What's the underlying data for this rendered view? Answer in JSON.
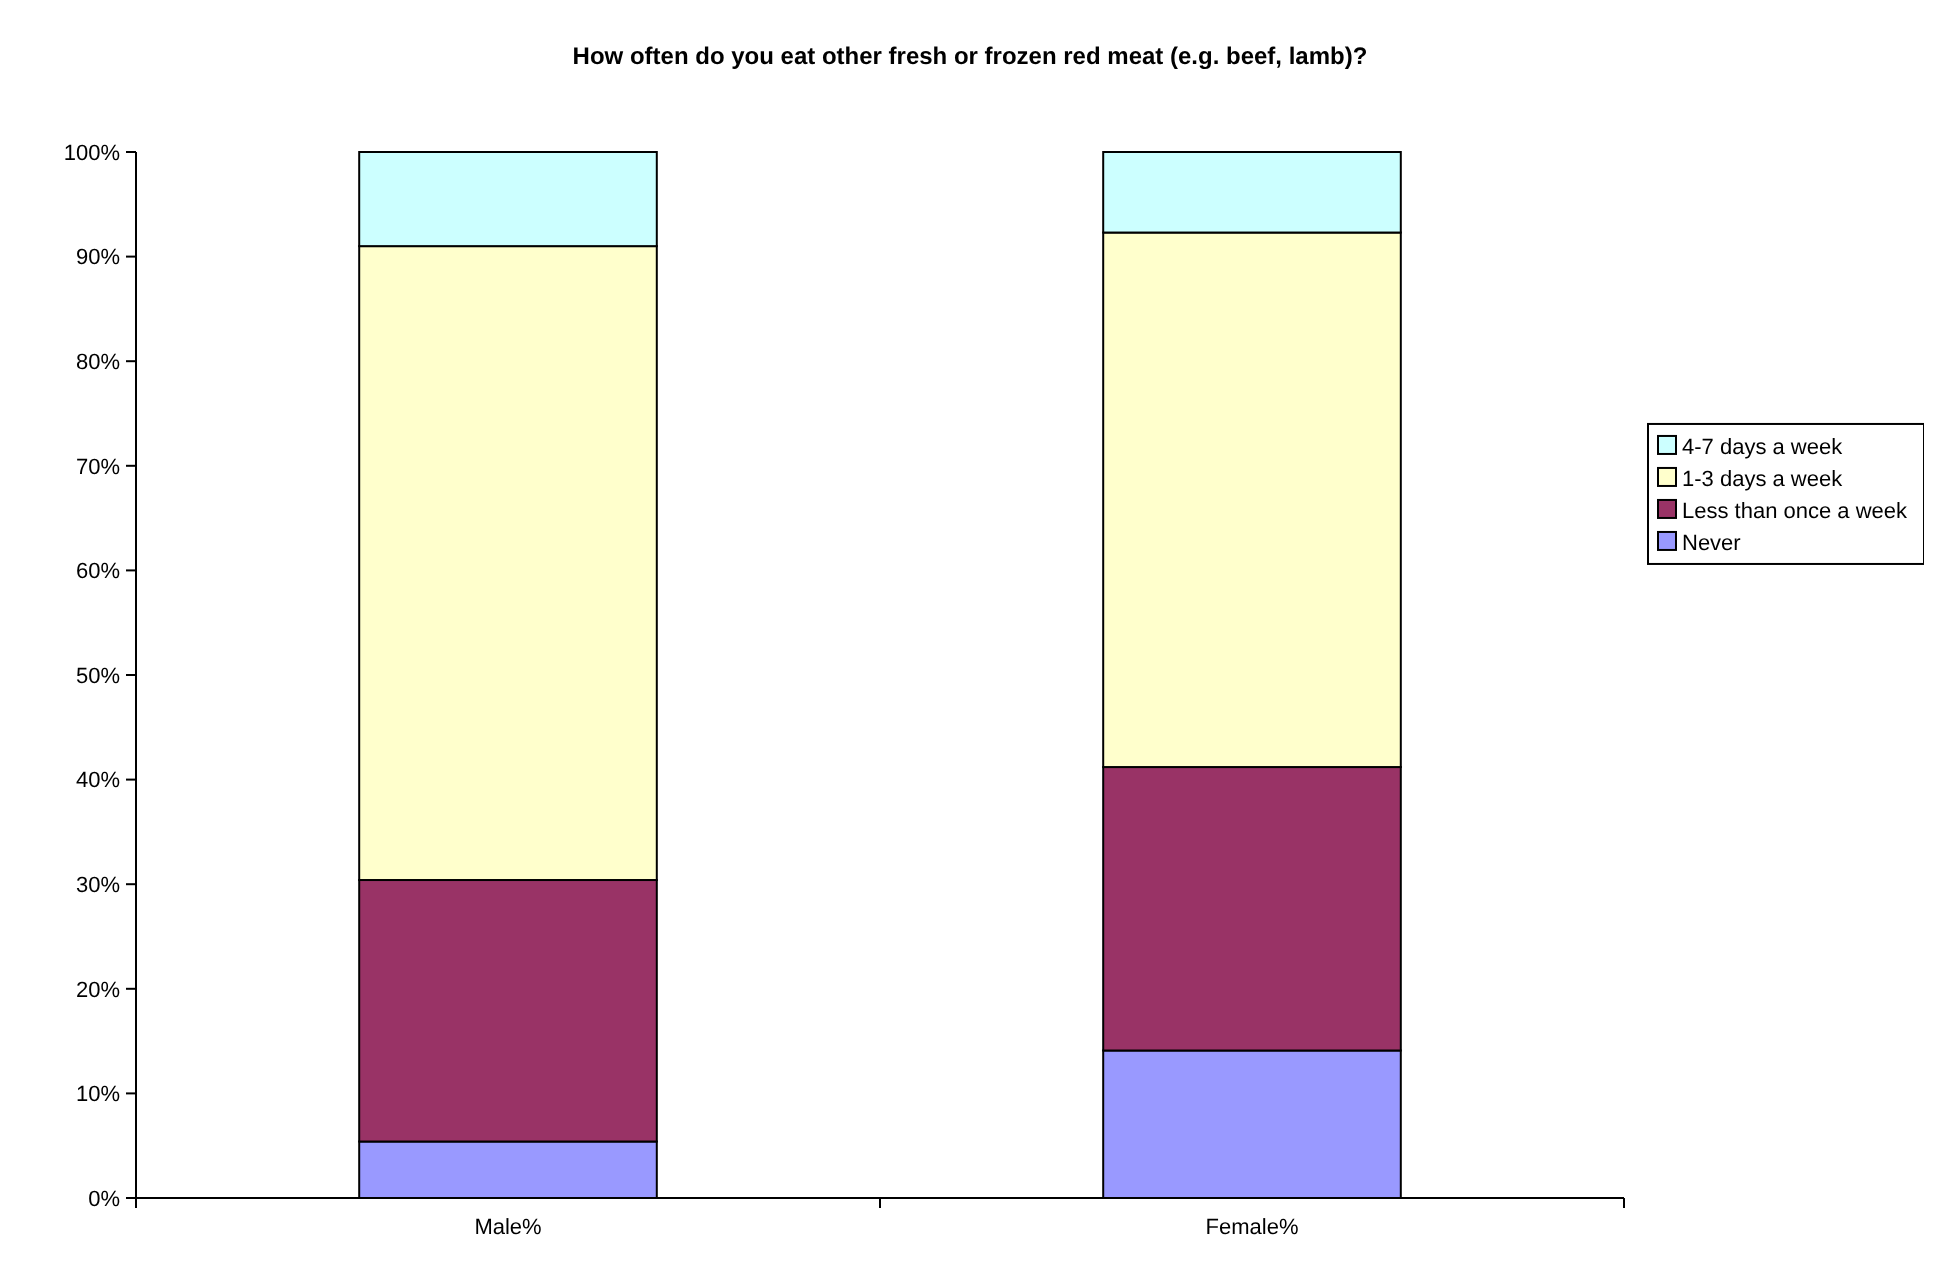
{
  "chart_data": {
    "type": "bar",
    "stacked": true,
    "title": "How often do you eat other fresh or frozen red meat (e.g. beef, lamb)?",
    "categories": [
      "Male%",
      "Female%"
    ],
    "series": [
      {
        "name": "Never",
        "color": "#9999ff",
        "values": [
          5.4,
          14.1
        ]
      },
      {
        "name": "Less than once a week",
        "color": "#993366",
        "values": [
          25.0,
          27.1
        ]
      },
      {
        "name": "1-3 days a week",
        "color": "#ffffcc",
        "values": [
          60.6,
          51.1
        ]
      },
      {
        "name": "4-7 days a week",
        "color": "#ccffff",
        "values": [
          9.0,
          7.7
        ]
      }
    ],
    "ylim": [
      0,
      100
    ],
    "yticks": [
      {
        "value": 0,
        "label": "0%"
      },
      {
        "value": 10,
        "label": "10%"
      },
      {
        "value": 20,
        "label": "20%"
      },
      {
        "value": 30,
        "label": "30%"
      },
      {
        "value": 40,
        "label": "40%"
      },
      {
        "value": 50,
        "label": "50%"
      },
      {
        "value": 60,
        "label": "60%"
      },
      {
        "value": 70,
        "label": "70%"
      },
      {
        "value": 80,
        "label": "80%"
      },
      {
        "value": 90,
        "label": "90%"
      },
      {
        "value": 100,
        "label": "100%"
      }
    ],
    "grid": false,
    "legend": "right"
  }
}
